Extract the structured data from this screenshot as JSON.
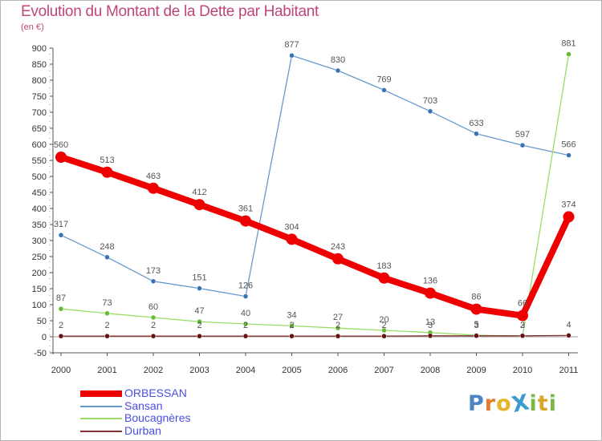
{
  "title": "Evolution du Montant de la Dette par Habitant",
  "unit_label": "(en €)",
  "brand": {
    "text": "ProXiti",
    "letters": [
      {
        "ch": "P",
        "color": "#4d84c4"
      },
      {
        "ch": "r",
        "color": "#e47b2a"
      },
      {
        "ch": "o",
        "color": "#e8b32c"
      },
      {
        "ch": "X",
        "color": "#3b9bd1"
      },
      {
        "ch": "i",
        "color": "#7bb84a"
      },
      {
        "ch": "t",
        "color": "#d9a52b"
      },
      {
        "ch": "i",
        "color": "#7bb84a"
      }
    ]
  },
  "colors": {
    "axis": "#555555",
    "grid": "#c8c8c8",
    "tick_label": "#333333",
    "value_label": "#555555",
    "legend_text": "#4b4fe0",
    "title": "#c0457a"
  },
  "chart_data": {
    "type": "line",
    "x": [
      "2000",
      "2001",
      "2002",
      "2003",
      "2004",
      "2005",
      "2006",
      "2007",
      "2008",
      "2009",
      "2010",
      "2011"
    ],
    "ylim": [
      -50,
      900
    ],
    "yticks": [
      "-50",
      "0",
      "50",
      "100",
      "150",
      "200",
      "250",
      "300",
      "350",
      "400",
      "450",
      "500",
      "550",
      "600",
      "650",
      "700",
      "750",
      "800",
      "850",
      "900"
    ],
    "grid": false,
    "legend_position": "bottom-left",
    "series": [
      {
        "name": "ORBESSAN",
        "color": "#ee0000",
        "style": "thick",
        "values": [
          560,
          513,
          463,
          412,
          361,
          304,
          243,
          183,
          136,
          86,
          66,
          374
        ],
        "labels": [
          "560",
          "513",
          "463",
          "412",
          "361",
          "304",
          "243",
          "183",
          "136",
          "86",
          "66",
          "374"
        ]
      },
      {
        "name": "Sansan",
        "color": "#6699cc",
        "marker": "#3a73b5",
        "style": "thin",
        "values": [
          317,
          248,
          173,
          151,
          126,
          877,
          830,
          769,
          703,
          633,
          597,
          566
        ],
        "labels": [
          "317",
          "248",
          "173",
          "151",
          "126",
          "877",
          "830",
          "769",
          "703",
          "633",
          "597",
          "566"
        ]
      },
      {
        "name": "Boucagnères",
        "color": "#99dd66",
        "marker": "#66bb33",
        "style": "thin",
        "values": [
          87,
          73,
          60,
          47,
          40,
          34,
          27,
          20,
          13,
          5,
          2,
          881
        ],
        "labels": [
          "87",
          "73",
          "60",
          "47",
          "40",
          "34",
          "27",
          "20",
          "13",
          "5",
          "2",
          "881"
        ]
      },
      {
        "name": "Durban",
        "color": "#883333",
        "marker": "#661111",
        "style": "thin",
        "values": [
          2,
          2,
          2,
          2,
          2,
          2,
          2,
          2,
          3,
          3,
          3,
          4
        ],
        "labels": [
          "2",
          "2",
          "2",
          "2",
          "2",
          "2",
          "2",
          "2",
          "3",
          "3",
          "3",
          "4"
        ]
      }
    ]
  }
}
